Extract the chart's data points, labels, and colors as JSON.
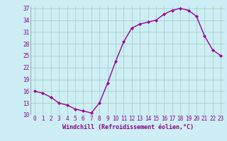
{
  "x": [
    0,
    1,
    2,
    3,
    4,
    5,
    6,
    7,
    8,
    9,
    10,
    11,
    12,
    13,
    14,
    15,
    16,
    17,
    18,
    19,
    20,
    21,
    22,
    23
  ],
  "y": [
    16,
    15.5,
    14.5,
    13,
    12.5,
    11.5,
    11,
    10.5,
    13,
    18,
    23.5,
    28.5,
    32,
    33,
    33.5,
    34,
    35.5,
    36.5,
    37,
    36.5,
    35,
    30,
    26.5,
    25
  ],
  "line_color": "#990099",
  "marker": "D",
  "marker_size": 2.0,
  "bg_color": "#cdeef5",
  "grid_color": "#a0ccbb",
  "xlabel": "Windchill (Refroidissement éolien,°C)",
  "xlim_min": -0.5,
  "xlim_max": 23.5,
  "ylim_min": 10,
  "ylim_max": 37.5,
  "yticks": [
    10,
    13,
    16,
    19,
    22,
    25,
    28,
    31,
    34,
    37
  ],
  "xticks": [
    0,
    1,
    2,
    3,
    4,
    5,
    6,
    7,
    8,
    9,
    10,
    11,
    12,
    13,
    14,
    15,
    16,
    17,
    18,
    19,
    20,
    21,
    22,
    23
  ],
  "font_color": "#880088",
  "tick_fontsize": 5.5,
  "label_fontsize": 6.0,
  "linewidth": 1.0
}
